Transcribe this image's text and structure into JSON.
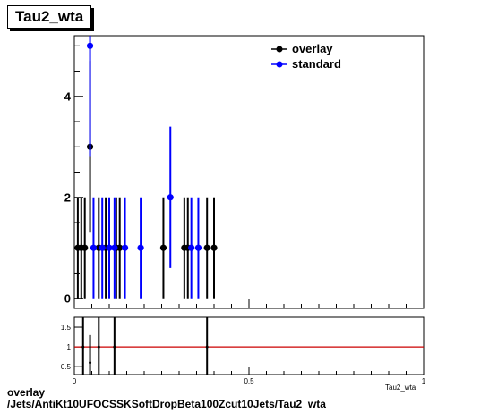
{
  "title": "Tau2_wta",
  "footer": {
    "line1": "overlay",
    "line2": "/Jets/AntiKt10UFOCSSKSoftDropBeta100Zcut10Jets/Tau2_wta"
  },
  "colors": {
    "overlay": "#000000",
    "standard": "#0000ff",
    "ratio_line": "#cc0000"
  },
  "chart_data": [
    {
      "type": "scatter",
      "title": "Tau2_wta",
      "xlabel": "",
      "ylabel": "",
      "xlim": [
        0,
        1
      ],
      "ylim": [
        -0.2,
        5.2
      ],
      "yticks": [
        0,
        2,
        4
      ],
      "legend": "top-right",
      "series": [
        {
          "name": "overlay",
          "color": "#000000",
          "points": [
            {
              "x": 0.01,
              "y": 1,
              "err": 1
            },
            {
              "x": 0.02,
              "y": 1,
              "err": 1
            },
            {
              "x": 0.03,
              "y": 1,
              "err": 1
            },
            {
              "x": 0.045,
              "y": 3,
              "err": 1.7
            },
            {
              "x": 0.07,
              "y": 1,
              "err": 1
            },
            {
              "x": 0.09,
              "y": 1,
              "err": 1
            },
            {
              "x": 0.12,
              "y": 1,
              "err": 1
            },
            {
              "x": 0.13,
              "y": 1,
              "err": 1
            },
            {
              "x": 0.255,
              "y": 1,
              "err": 1
            },
            {
              "x": 0.315,
              "y": 1,
              "err": 1
            },
            {
              "x": 0.325,
              "y": 1,
              "err": 1
            },
            {
              "x": 0.38,
              "y": 1,
              "err": 1
            },
            {
              "x": 0.4,
              "y": 1,
              "err": 1
            }
          ]
        },
        {
          "name": "standard",
          "color": "#0000ff",
          "points": [
            {
              "x": 0.045,
              "y": 5,
              "err": 2.2
            },
            {
              "x": 0.055,
              "y": 1,
              "err": 1
            },
            {
              "x": 0.08,
              "y": 1,
              "err": 1
            },
            {
              "x": 0.1,
              "y": 1,
              "err": 1
            },
            {
              "x": 0.115,
              "y": 1,
              "err": 1
            },
            {
              "x": 0.145,
              "y": 1,
              "err": 1
            },
            {
              "x": 0.19,
              "y": 1,
              "err": 1
            },
            {
              "x": 0.275,
              "y": 2,
              "err": 1.4
            },
            {
              "x": 0.335,
              "y": 1,
              "err": 1
            },
            {
              "x": 0.355,
              "y": 1,
              "err": 1
            }
          ]
        }
      ]
    },
    {
      "type": "scatter",
      "title": "",
      "xlabel": "Tau2_wta",
      "ylabel": "",
      "xlim": [
        0,
        1
      ],
      "ylim": [
        0.3,
        1.75
      ],
      "xticks": [
        0,
        0.5,
        1
      ],
      "yticks": [
        0.5,
        1,
        1.5
      ],
      "reference_line": 1,
      "series": [
        {
          "name": "",
          "color": "#000000",
          "points": [
            {
              "x": 0.045,
              "y": 0.6,
              "err": 0.7
            },
            {
              "x": 0.025,
              "y": 1,
              "err": 1
            },
            {
              "x": 0.07,
              "y": 1,
              "err": 1
            },
            {
              "x": 0.115,
              "y": 1,
              "err": 1
            },
            {
              "x": 0.38,
              "y": 1,
              "err": 1
            }
          ]
        }
      ]
    }
  ]
}
